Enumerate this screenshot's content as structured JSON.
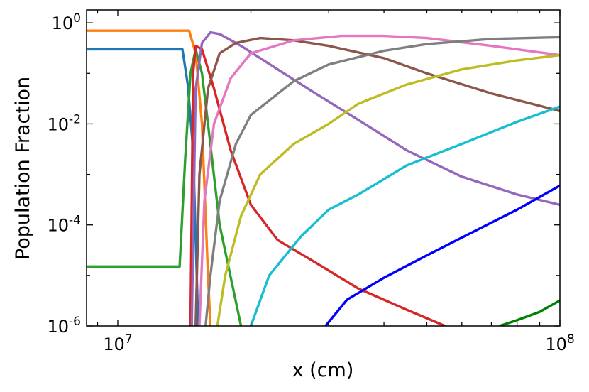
{
  "chart_data": {
    "type": "line",
    "title": "",
    "xlabel": "x (cm)",
    "ylabel": "Population Fraction",
    "xscale": "log",
    "yscale": "log",
    "xlim": [
      8500000.0,
      100000000.0
    ],
    "ylim": [
      1e-06,
      1.8
    ],
    "grid": false,
    "legend": "none",
    "x_ticks": [
      {
        "value": 10000000.0,
        "label_base": "10",
        "label_exp": "7"
      },
      {
        "value": 100000000.0,
        "label_base": "10",
        "label_exp": "8"
      }
    ],
    "y_ticks": [
      {
        "value": 1.0,
        "label_base": "10",
        "label_exp": "0"
      },
      {
        "value": 0.01,
        "label_base": "10",
        "label_exp": "-2"
      },
      {
        "value": 0.0001,
        "label_base": "10",
        "label_exp": "-4"
      },
      {
        "value": 1e-06,
        "label_base": "10",
        "label_exp": "-6"
      }
    ],
    "series": [
      {
        "color": "#1f77b4",
        "points": [
          [
            8500000.0,
            0.3
          ],
          [
            14000000.0,
            0.3
          ],
          [
            14400000.0,
            0.06
          ],
          [
            14800000.0,
            0.003
          ],
          [
            15200000.0,
            1e-06
          ]
        ]
      },
      {
        "color": "#ff7f0e",
        "points": [
          [
            8500000.0,
            0.7
          ],
          [
            14500000.0,
            0.7
          ],
          [
            15000000.0,
            0.25
          ],
          [
            15500000.0,
            0.01
          ],
          [
            16000000.0,
            1e-05
          ],
          [
            16200000.0,
            1e-06
          ]
        ]
      },
      {
        "color": "#2ca02c",
        "points": [
          [
            8500000.0,
            1.5e-05
          ],
          [
            13800000.0,
            1.5e-05
          ],
          [
            14200000.0,
            0.002
          ],
          [
            14600000.0,
            0.1
          ],
          [
            15000000.0,
            0.3
          ],
          [
            15500000.0,
            0.1
          ],
          [
            16000000.0,
            0.01
          ],
          [
            17000000.0,
            0.0001
          ],
          [
            19000000.0,
            1e-06
          ]
        ]
      },
      {
        "color": "#d62728",
        "points": [
          [
            14600000.0,
            1e-06
          ],
          [
            14800000.0,
            0.1
          ],
          [
            15000000.0,
            0.35
          ],
          [
            15500000.0,
            0.3
          ],
          [
            16500000.0,
            0.05
          ],
          [
            18000000.0,
            0.003
          ],
          [
            20000000.0,
            0.00025
          ],
          [
            23000000.0,
            5e-05
          ],
          [
            28000000.0,
            1.8e-05
          ],
          [
            35000000.0,
            5.5e-06
          ],
          [
            45000000.0,
            2.1e-06
          ],
          [
            55000000.0,
            1e-06
          ]
        ]
      },
      {
        "color": "#9467bd",
        "points": [
          [
            14700000.0,
            1e-06
          ],
          [
            15000000.0,
            0.05
          ],
          [
            15500000.0,
            0.4
          ],
          [
            16200000.0,
            0.65
          ],
          [
            17000000.0,
            0.6
          ],
          [
            19000000.0,
            0.35
          ],
          [
            23000000.0,
            0.12
          ],
          [
            28000000.0,
            0.04
          ],
          [
            35000000.0,
            0.012
          ],
          [
            45000000.0,
            0.003
          ],
          [
            60000000.0,
            0.0009
          ],
          [
            80000000.0,
            0.0004
          ],
          [
            100000000.0,
            0.00025
          ]
        ]
      },
      {
        "color": "#8c564b",
        "points": [
          [
            15000000.0,
            1e-06
          ],
          [
            15300000.0,
            0.001
          ],
          [
            16000000.0,
            0.05
          ],
          [
            17000000.0,
            0.25
          ],
          [
            18500000.0,
            0.4
          ],
          [
            21000000.0,
            0.5
          ],
          [
            25000000.0,
            0.45
          ],
          [
            30000000.0,
            0.35
          ],
          [
            40000000.0,
            0.2
          ],
          [
            50000000.0,
            0.1
          ],
          [
            70000000.0,
            0.04
          ],
          [
            100000000.0,
            0.018
          ]
        ]
      },
      {
        "color": "#e377c2",
        "points": [
          [
            15300000.0,
            1e-06
          ],
          [
            15700000.0,
            0.0003
          ],
          [
            16500000.0,
            0.01
          ],
          [
            18000000.0,
            0.08
          ],
          [
            20000000.0,
            0.25
          ],
          [
            25000000.0,
            0.45
          ],
          [
            32000000.0,
            0.55
          ],
          [
            40000000.0,
            0.55
          ],
          [
            50000000.0,
            0.5
          ],
          [
            70000000.0,
            0.35
          ],
          [
            100000000.0,
            0.23
          ]
        ]
      },
      {
        "color": "#7f7f7f",
        "points": [
          [
            15800000.0,
            1e-06
          ],
          [
            16200000.0,
            1e-05
          ],
          [
            17000000.0,
            0.0003
          ],
          [
            18500000.0,
            0.004
          ],
          [
            20000000.0,
            0.015
          ],
          [
            25000000.0,
            0.07
          ],
          [
            30000000.0,
            0.15
          ],
          [
            40000000.0,
            0.28
          ],
          [
            50000000.0,
            0.38
          ],
          [
            70000000.0,
            0.48
          ],
          [
            100000000.0,
            0.52
          ]
        ]
      },
      {
        "color": "#bcbd22",
        "points": [
          [
            16800000.0,
            1e-06
          ],
          [
            17500000.0,
            1e-05
          ],
          [
            19000000.0,
            0.00015
          ],
          [
            21000000.0,
            0.001
          ],
          [
            25000000.0,
            0.004
          ],
          [
            30000000.0,
            0.01
          ],
          [
            35000000.0,
            0.025
          ],
          [
            45000000.0,
            0.06
          ],
          [
            60000000.0,
            0.12
          ],
          [
            80000000.0,
            0.18
          ],
          [
            100000000.0,
            0.23
          ]
        ]
      },
      {
        "color": "#17becf",
        "points": [
          [
            20000000.0,
            1e-06
          ],
          [
            22000000.0,
            1e-05
          ],
          [
            26000000.0,
            6e-05
          ],
          [
            30000000.0,
            0.0002
          ],
          [
            35000000.0,
            0.0004
          ],
          [
            45000000.0,
            0.0015
          ],
          [
            60000000.0,
            0.004
          ],
          [
            80000000.0,
            0.011
          ],
          [
            100000000.0,
            0.022
          ]
        ]
      },
      {
        "color": "#0000ff",
        "points": [
          [
            29500000.0,
            1e-06
          ],
          [
            33000000.0,
            3.3e-06
          ],
          [
            40000000.0,
            9e-06
          ],
          [
            50000000.0,
            2.5e-05
          ],
          [
            65000000.0,
            8e-05
          ],
          [
            80000000.0,
            0.0002
          ],
          [
            100000000.0,
            0.0006
          ]
        ]
      },
      {
        "color": "#008000",
        "points": [
          [
            73000000.0,
            1e-06
          ],
          [
            80000000.0,
            1.3e-06
          ],
          [
            90000000.0,
            1.9e-06
          ],
          [
            100000000.0,
            3.2e-06
          ]
        ]
      }
    ]
  }
}
